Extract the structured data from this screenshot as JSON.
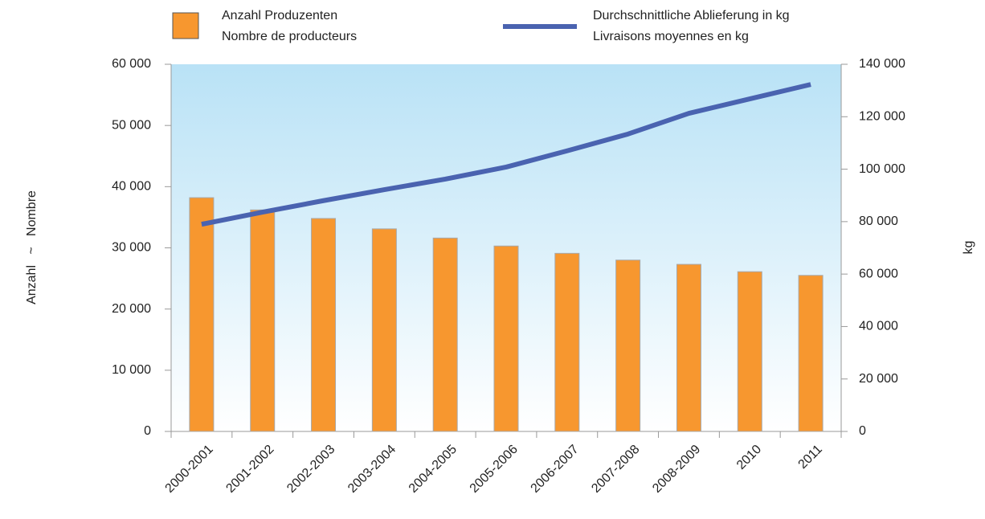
{
  "chart_data": {
    "type": "bar_line",
    "y_label": "Anzahl   ~   Nombre",
    "y2_label": "kg",
    "categories": [
      "2000-2001",
      "2001-2002",
      "2002-2003",
      "2003-2004",
      "2004-2005",
      "2005-2006",
      "2006-2007",
      "2007-2008",
      "2008-2009",
      "2010",
      "2011"
    ],
    "series": [
      {
        "name": "Anzahl Produzenten\nNombre de producteurs",
        "color": "#f7972f",
        "kind": "bar",
        "values": [
          38200,
          36200,
          34800,
          33100,
          31600,
          30300,
          29100,
          28000,
          27300,
          26100,
          25500
        ]
      },
      {
        "name": "Durchschnittliche Ablieferung in kg\nLivraisons moyennes en kg",
        "color": "#4a63b0",
        "kind": "line",
        "axis": "y2",
        "values": [
          79000,
          83600,
          88000,
          92200,
          96200,
          100800,
          107000,
          113400,
          121300,
          126800,
          132300
        ]
      }
    ],
    "ylim": [
      0,
      60000
    ],
    "yticks": [
      0,
      {
        "value": 10000,
        "label": "10 000"
      },
      {
        "value": 20000,
        "label": "20 000"
      },
      {
        "value": 30000,
        "label": "30 000"
      },
      {
        "value": 40000,
        "label": "40 000"
      },
      {
        "value": 50000,
        "label": "50 000"
      },
      {
        "value": 60000,
        "label": "60 000"
      }
    ],
    "y2lim": [
      0,
      140000
    ],
    "y2ticks": [
      0,
      {
        "value": 20000,
        "label": "20 000"
      },
      {
        "value": 40000,
        "label": "40 000"
      },
      {
        "value": 60000,
        "label": "60 000"
      },
      {
        "value": 80000,
        "label": "80 000"
      },
      {
        "value": 100000,
        "label": "100 000"
      },
      {
        "value": 120000,
        "label": "120 000"
      },
      {
        "value": 140000,
        "label": "140 000"
      }
    ]
  }
}
